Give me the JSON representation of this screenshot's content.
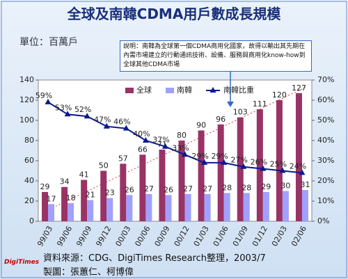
{
  "chart_data": {
    "type": "bar",
    "title": "全球及南韓CDMA用戶數成長規模",
    "unit_label": "單位：百萬戶",
    "annotation": "說明：南韓為全球第一個CDMA商用化國家，故得以輸出其先期在內需市場建立的行動通訊技術、設備、服務與商用化know-how到全球其他CDMA市場",
    "source": "資料來源：CDG、DigiTimes Research整理，2003/7",
    "credit": "製圖：張蕙仁、柯博偉",
    "logo": "DigiTimes",
    "categories": [
      "99/03",
      "99/06",
      "99/09",
      "99/12",
      "00/03",
      "00/06",
      "00/09",
      "00/12",
      "01/03",
      "01/06",
      "01/09",
      "01/12",
      "02/03",
      "02/06"
    ],
    "series": [
      {
        "name": "全球",
        "color": "#993366",
        "values": [
          29,
          34,
          41,
          50,
          57,
          66,
          71,
          80,
          90,
          96,
          103,
          111,
          120,
          127
        ]
      },
      {
        "name": "南韓",
        "color": "#a0a0ff",
        "values": [
          17,
          18,
          21,
          23,
          26,
          27,
          26,
          27,
          27,
          28,
          28,
          29,
          30,
          31
        ]
      },
      {
        "name": "南韓比重",
        "color": "#0a1a8c",
        "type": "line",
        "axis": "y2",
        "values": [
          59,
          53,
          52,
          47,
          46,
          40,
          37,
          33,
          29,
          29,
          27,
          26,
          25,
          24
        ],
        "value_labels": [
          "59%",
          "53%",
          "52%",
          "47%",
          "46%",
          "40%",
          "37%",
          "33%",
          "29%",
          "29%",
          "27%",
          "26%",
          "25%",
          "24%"
        ]
      }
    ],
    "ylim": [
      0,
      140
    ],
    "yticks": [
      0,
      20,
      40,
      60,
      80,
      100,
      120,
      140
    ],
    "y2lim": [
      0,
      70
    ],
    "y2ticks": [
      {
        "value": 0,
        "label": "0%"
      },
      {
        "value": 10,
        "label": "10%"
      },
      {
        "value": 20,
        "label": "20%"
      },
      {
        "value": 30,
        "label": "30%"
      },
      {
        "value": 40,
        "label": "40%"
      },
      {
        "value": 50,
        "label": "50%"
      },
      {
        "value": 60,
        "label": "60%"
      },
      {
        "value": 70,
        "label": "70%"
      }
    ],
    "legend": "top"
  }
}
